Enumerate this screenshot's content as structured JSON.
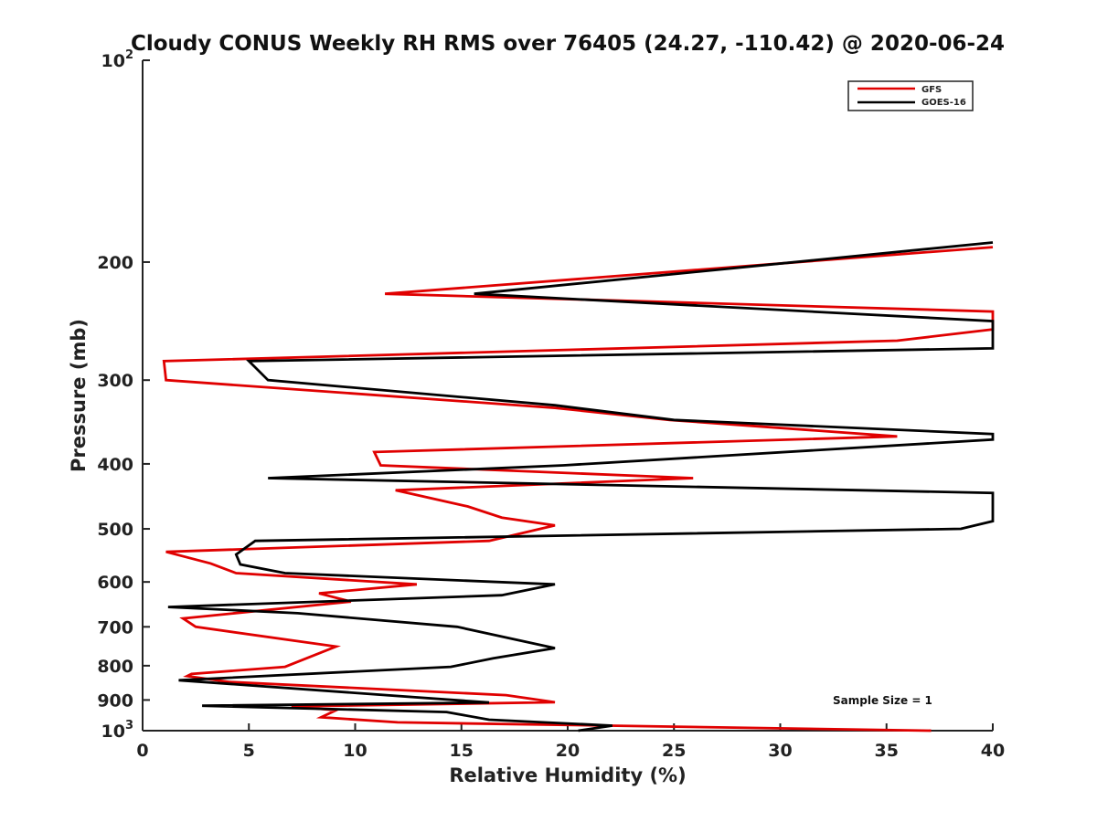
{
  "chart_data": {
    "type": "line",
    "title": "Cloudy CONUS Weekly RH RMS over 76405 (24.27, -110.42) @ 2020-06-24",
    "xlabel": "Relative Humidity (%)",
    "ylabel": "Pressure (mb)",
    "xlim": [
      0,
      40
    ],
    "ylim": [
      100,
      1000
    ],
    "y_scale": "log",
    "y_reversed": true,
    "x_ticks": [
      0,
      5,
      10,
      15,
      20,
      25,
      30,
      35,
      40
    ],
    "x_tick_labels": [
      "0",
      "5",
      "10",
      "15",
      "20",
      "25",
      "30",
      "35",
      "40"
    ],
    "y_ticks": [
      100,
      200,
      300,
      400,
      500,
      600,
      700,
      800,
      900,
      1000
    ],
    "y_tick_labels": [
      {
        "base": "10",
        "sup": "2"
      },
      {
        "base": "200",
        "sup": ""
      },
      {
        "base": "300",
        "sup": ""
      },
      {
        "base": "400",
        "sup": ""
      },
      {
        "base": "500",
        "sup": ""
      },
      {
        "base": "600",
        "sup": ""
      },
      {
        "base": "700",
        "sup": ""
      },
      {
        "base": "800",
        "sup": ""
      },
      {
        "base": "900",
        "sup": ""
      },
      {
        "base": "10",
        "sup": "3"
      }
    ],
    "grid": false,
    "legend_position": "top-right",
    "series": [
      {
        "name": "GFS",
        "color": "#e00000",
        "points": [
          [
            40,
            190
          ],
          [
            11.4,
            223
          ],
          [
            40,
            237
          ],
          [
            40,
            252
          ],
          [
            35.5,
            262
          ],
          [
            1.0,
            281
          ],
          [
            1.1,
            300
          ],
          [
            19.4,
            330
          ],
          [
            24.8,
            344
          ],
          [
            35.5,
            364
          ],
          [
            10.9,
            384
          ],
          [
            11.2,
            402
          ],
          [
            25.9,
            420
          ],
          [
            11.9,
            438
          ],
          [
            15.3,
            463
          ],
          [
            16.9,
            481
          ],
          [
            19.4,
            494
          ],
          [
            16.3,
            521
          ],
          [
            1.1,
            541
          ],
          [
            3.2,
            563
          ],
          [
            4.4,
            582
          ],
          [
            12.9,
            605
          ],
          [
            8.3,
            624
          ],
          [
            9.8,
            642
          ],
          [
            1.9,
            680
          ],
          [
            2.5,
            700
          ],
          [
            9.1,
            749
          ],
          [
            6.7,
            803
          ],
          [
            2.3,
            823
          ],
          [
            2.1,
            829
          ],
          [
            4.1,
            846
          ],
          [
            17.1,
            885
          ],
          [
            19.4,
            907
          ],
          [
            7.0,
            920
          ],
          [
            9.1,
            932
          ],
          [
            8.4,
            955
          ],
          [
            12.0,
            972
          ],
          [
            37.1,
            1000
          ]
        ]
      },
      {
        "name": "GOES-16",
        "color": "#000000",
        "points": [
          [
            40,
            187
          ],
          [
            15.6,
            223
          ],
          [
            40,
            245
          ],
          [
            40,
            269
          ],
          [
            5.0,
            281
          ],
          [
            5.9,
            300
          ],
          [
            19.4,
            327
          ],
          [
            25.0,
            344
          ],
          [
            40,
            361
          ],
          [
            40,
            368
          ],
          [
            19.8,
            402
          ],
          [
            5.9,
            420
          ],
          [
            40,
            442
          ],
          [
            40,
            487
          ],
          [
            38.5,
            500
          ],
          [
            5.3,
            521
          ],
          [
            4.4,
            546
          ],
          [
            4.6,
            565
          ],
          [
            6.7,
            582
          ],
          [
            19.4,
            605
          ],
          [
            16.9,
            628
          ],
          [
            1.2,
            654
          ],
          [
            7.3,
            668
          ],
          [
            14.8,
            700
          ],
          [
            19.4,
            753
          ],
          [
            16.5,
            780
          ],
          [
            14.5,
            803
          ],
          [
            1.7,
            841
          ],
          [
            16.3,
            908
          ],
          [
            2.8,
            918
          ],
          [
            14.3,
            938
          ],
          [
            16.3,
            963
          ],
          [
            22.1,
            983
          ],
          [
            20.5,
            1000
          ]
        ]
      }
    ],
    "annotation": "Sample Size = 1"
  }
}
